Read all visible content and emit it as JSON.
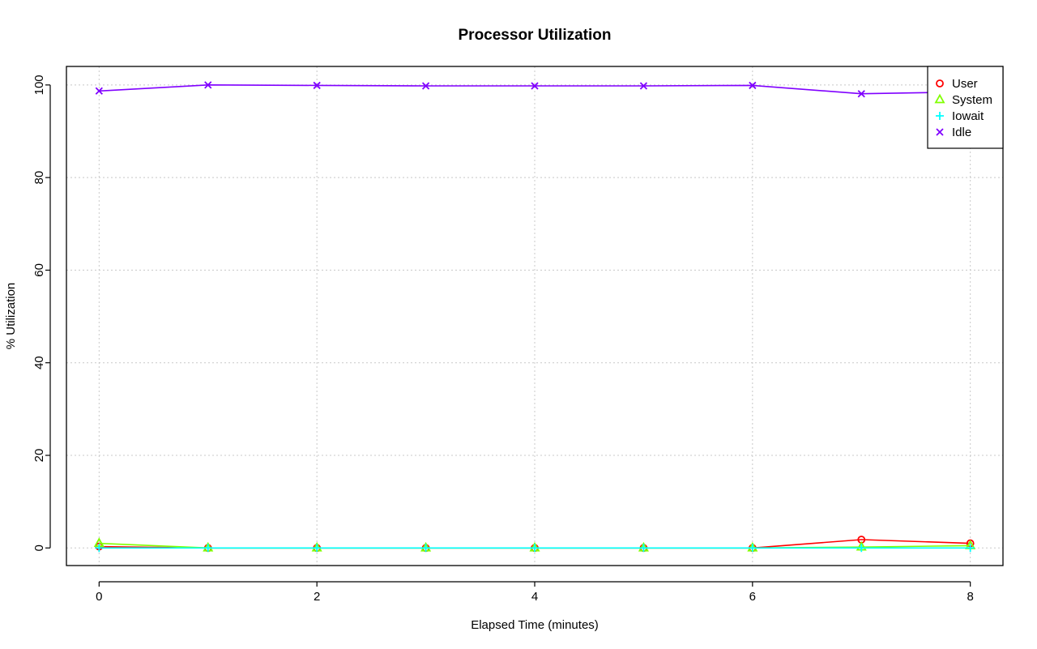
{
  "chart_data": {
    "type": "line",
    "title": "Processor Utilization",
    "xlabel": "Elapsed Time (minutes)",
    "ylabel": "% Utilization",
    "x": [
      0,
      1,
      2,
      3,
      4,
      5,
      6,
      7,
      8
    ],
    "xlim": [
      -0.3,
      8.3
    ],
    "ylim": [
      -3.8,
      104
    ],
    "x_ticks": [
      "0",
      "2",
      "4",
      "6",
      "8"
    ],
    "y_ticks": [
      "0",
      "20",
      "40",
      "60",
      "80",
      "100"
    ],
    "grid": true,
    "legend_position": "top-right",
    "series": [
      {
        "name": "User",
        "color": "#FF0000",
        "marker": "circle",
        "values": [
          0.3,
          0.0,
          0.0,
          0.0,
          0.0,
          0.0,
          0.0,
          1.8,
          1.0
        ]
      },
      {
        "name": "System",
        "color": "#80FF00",
        "marker": "triangle",
        "values": [
          1.0,
          0.0,
          0.0,
          0.0,
          0.0,
          0.0,
          0.0,
          0.2,
          0.5
        ]
      },
      {
        "name": "Iowait",
        "color": "#00FFFF",
        "marker": "plus",
        "values": [
          0.0,
          0.0,
          0.0,
          0.0,
          0.0,
          0.0,
          0.0,
          0.0,
          0.0
        ]
      },
      {
        "name": "Idle",
        "color": "#8000FF",
        "marker": "cross",
        "values": [
          98.7,
          100.0,
          99.9,
          99.8,
          99.8,
          99.8,
          99.9,
          98.1,
          98.5
        ]
      }
    ]
  }
}
